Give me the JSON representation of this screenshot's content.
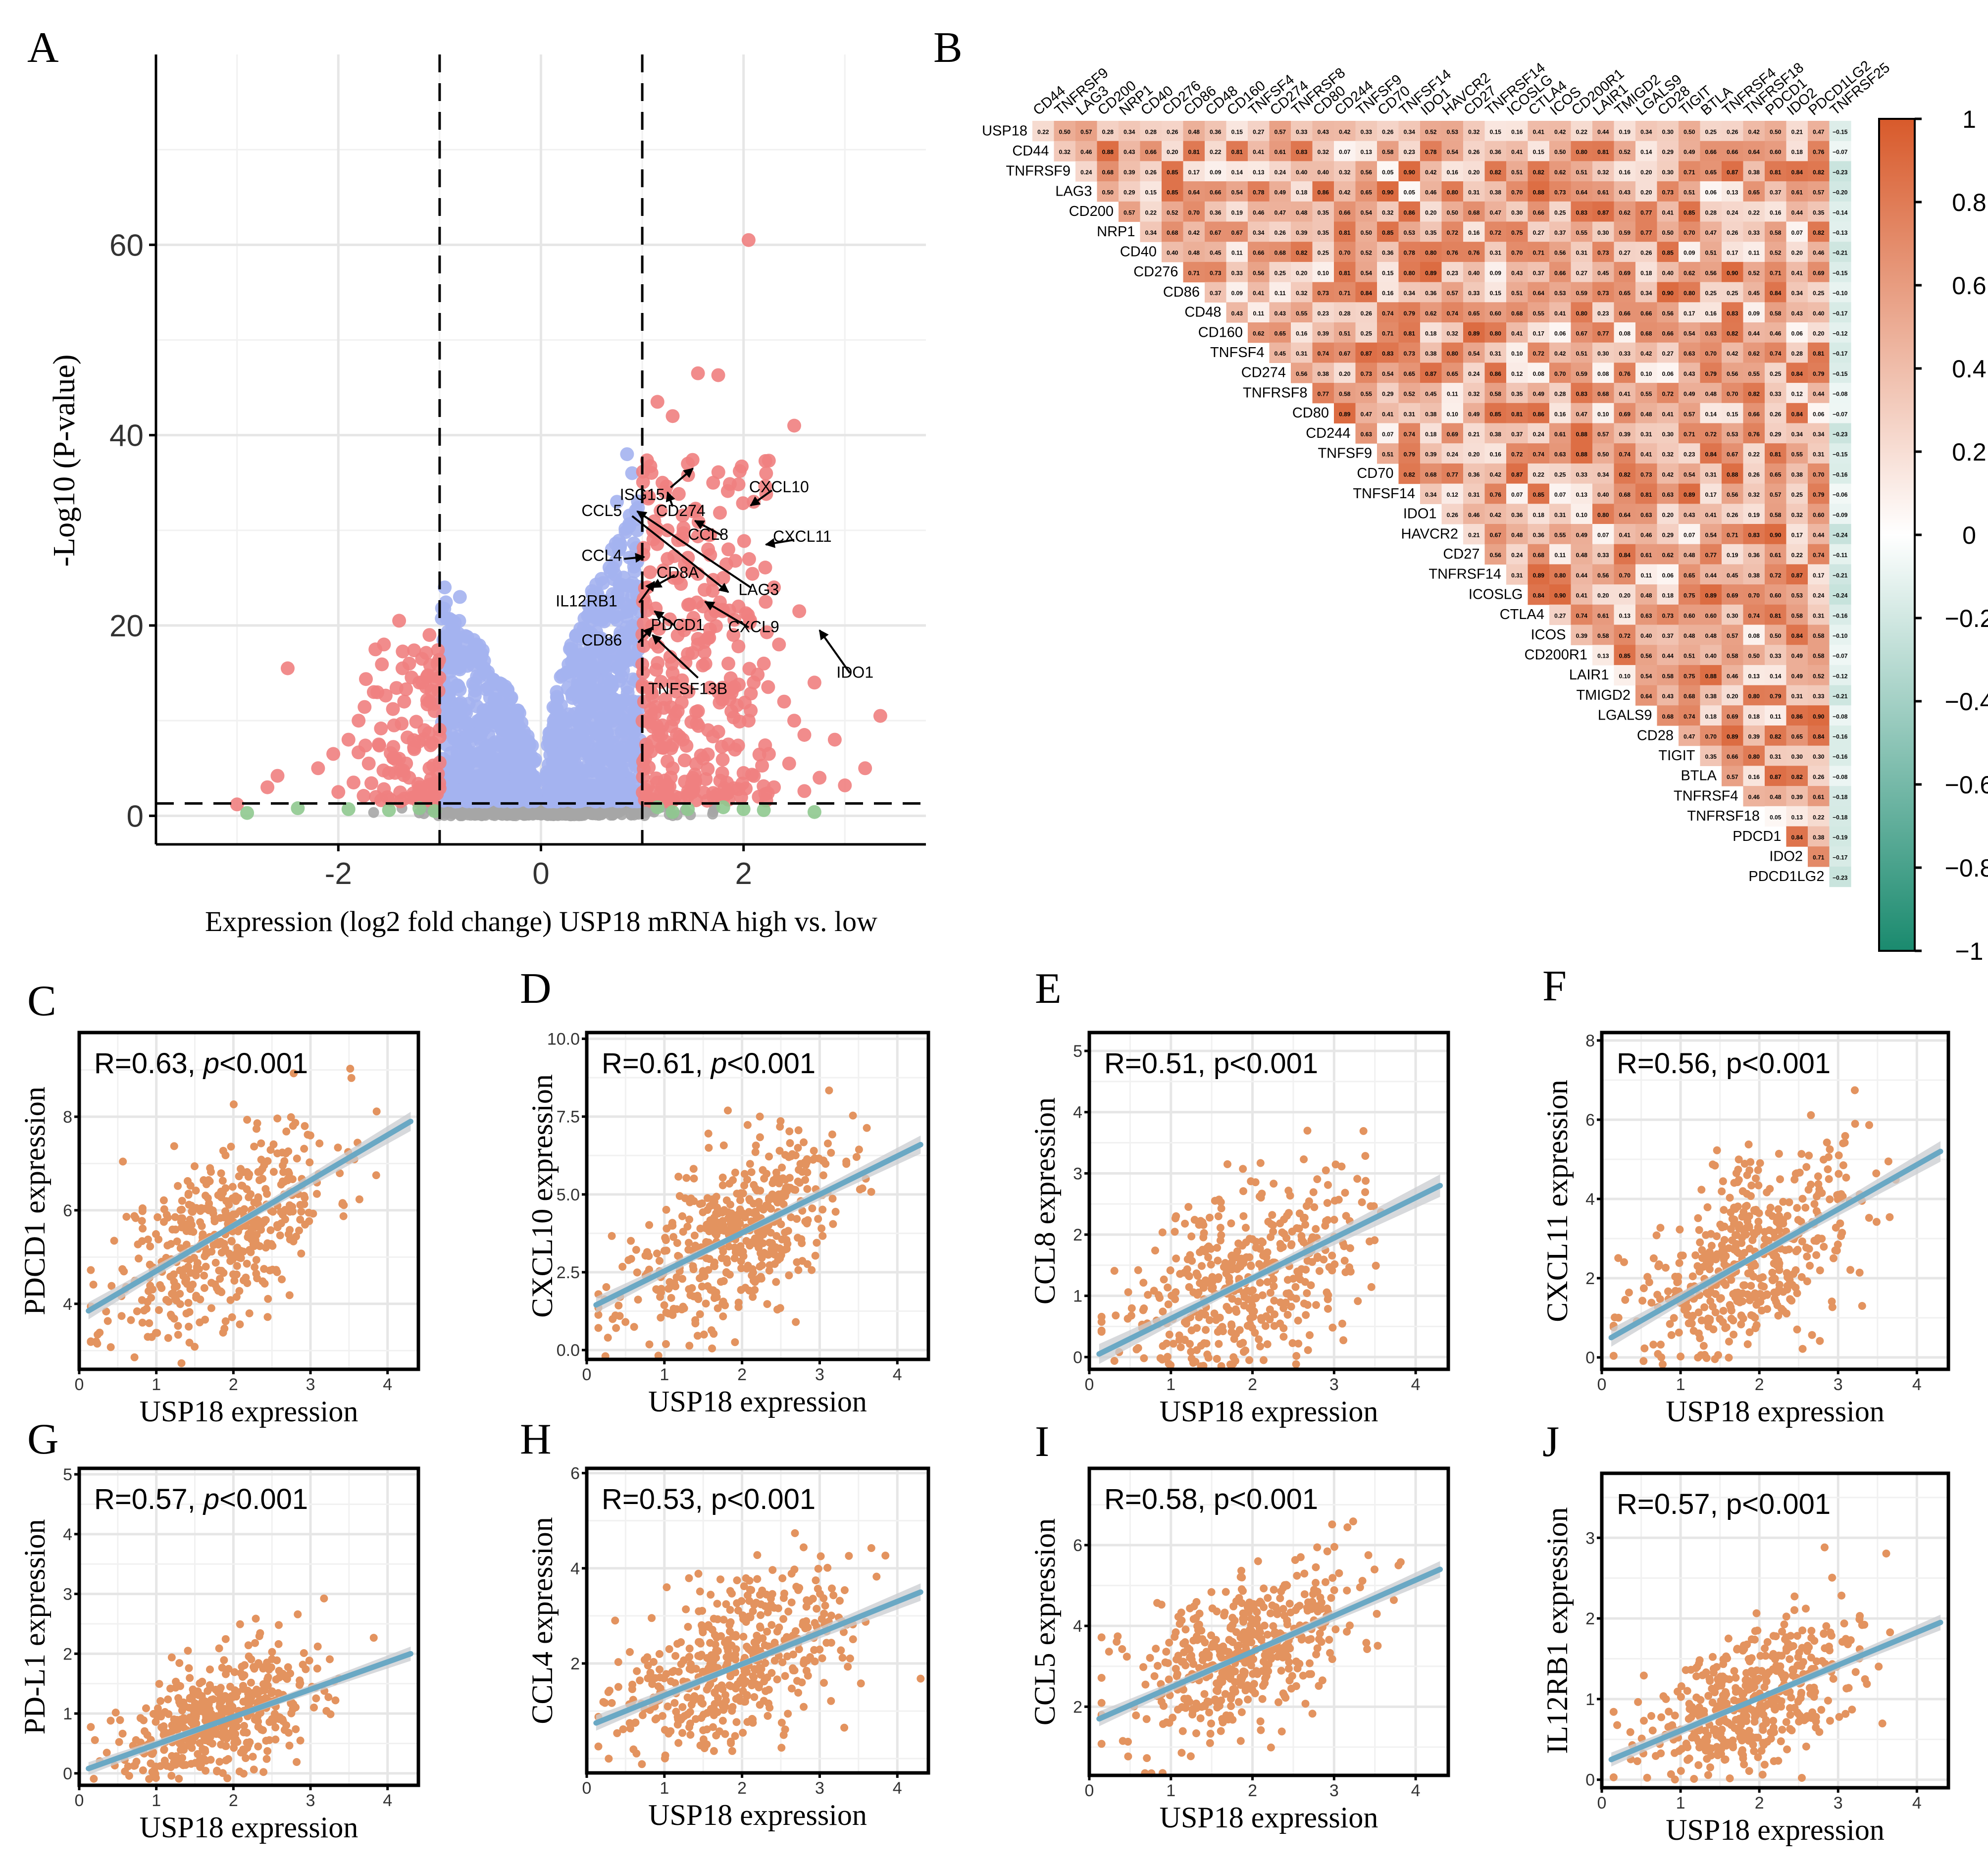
{
  "figure": {
    "panel_letters": [
      "A",
      "B",
      "C",
      "D",
      "E",
      "F",
      "G",
      "H",
      "I",
      "J"
    ]
  },
  "colors": {
    "volcano_up": "#f08080",
    "volcano_down": "#a4b3ef",
    "volcano_ns": "#a6a6a6",
    "volcano_fc_only": "#8fc98f",
    "scatter_point": "#e3935f",
    "fit_line": "#6aa8c4",
    "ci_band": "#c9ccd0",
    "heat_pos": "#d85a2b",
    "heat_neg": "#1a8a6e",
    "heat_mid": "#ffffff"
  },
  "chart_data": [
    {
      "id": "A",
      "type": "scatter",
      "subtype": "volcano",
      "xlabel": "Expression (log2 fold change) USP18 mRNA high vs. low",
      "ylabel": "-Log10 (P-value)",
      "xlim": [
        -3.8,
        3.8
      ],
      "ylim": [
        -3,
        80
      ],
      "xticks": [
        -2,
        0,
        2
      ],
      "xtick_labels": [
        "-2",
        "0",
        "2"
      ],
      "yticks": [
        0,
        20,
        40,
        60
      ],
      "ytick_labels": [
        "0",
        "20",
        "40",
        "60"
      ],
      "vlines": [
        -1,
        1
      ],
      "hline": 1.3,
      "series": [
        {
          "name": "Up",
          "points": [
            [
              2.05,
              60.5
            ],
            [
              1.55,
              46.5
            ],
            [
              1.75,
              46.3
            ],
            [
              1.15,
              43.5
            ],
            [
              2.5,
              41
            ],
            [
              1.3,
              42
            ],
            [
              1.45,
              37
            ],
            [
              1.7,
              35
            ],
            [
              2.1,
              33
            ],
            [
              1.25,
              30
            ],
            [
              1.85,
              28
            ],
            [
              1.35,
              25
            ],
            [
              2.3,
              24
            ],
            [
              1.6,
              22
            ],
            [
              2.55,
              21.5
            ],
            [
              1.1,
              20
            ],
            [
              1.9,
              19
            ],
            [
              1.45,
              17
            ],
            [
              2.2,
              16
            ],
            [
              2.7,
              14
            ],
            [
              1.3,
              15
            ],
            [
              1.75,
              13
            ],
            [
              2.4,
              12
            ],
            [
              3.35,
              10.5
            ],
            [
              1.55,
              11
            ],
            [
              2.05,
              10
            ],
            [
              1.2,
              9.5
            ],
            [
              2.6,
              8.5
            ],
            [
              1.4,
              8
            ],
            [
              2.9,
              8
            ],
            [
              1.85,
              7.5
            ],
            [
              1.05,
              7
            ],
            [
              2.25,
              6.5
            ],
            [
              3.2,
              5
            ],
            [
              1.6,
              6
            ],
            [
              2.45,
              5.5
            ],
            [
              1.3,
              5
            ],
            [
              2.0,
              4.5
            ],
            [
              2.75,
              4
            ],
            [
              1.5,
              4
            ],
            [
              1.15,
              3.5
            ],
            [
              2.3,
              3
            ],
            [
              1.95,
              2.8
            ],
            [
              2.6,
              2.6
            ],
            [
              1.7,
              2.4
            ],
            [
              1.25,
              2.2
            ],
            [
              3.0,
              3.2
            ],
            [
              2.15,
              2
            ],
            [
              1.45,
              2.1
            ],
            [
              1.1,
              12.5
            ],
            [
              1.2,
              35
            ],
            [
              1.5,
              32
            ],
            [
              1.65,
              28
            ],
            [
              1.8,
              25
            ],
            [
              1.4,
              20
            ],
            [
              1.55,
              18
            ],
            [
              1.95,
              22
            ],
            [
              2.1,
              14
            ],
            [
              2.35,
              18
            ],
            [
              1.05,
              24
            ],
            [
              1.25,
              27
            ],
            [
              1.35,
              11
            ],
            [
              1.65,
              9
            ],
            [
              2.5,
              10
            ],
            [
              1.85,
              16
            ]
          ]
        },
        {
          "name": "Down",
          "points": [
            [
              -1.4,
              20.5
            ],
            [
              -1.1,
              19
            ],
            [
              -1.55,
              18
            ],
            [
              -1.3,
              16
            ],
            [
              -2.5,
              15.5
            ],
            [
              -1.2,
              14
            ],
            [
              -1.65,
              13
            ],
            [
              -1.35,
              12
            ],
            [
              -1.05,
              11
            ],
            [
              -1.8,
              10
            ],
            [
              -1.45,
              9.5
            ],
            [
              -1.15,
              9
            ],
            [
              -1.9,
              8
            ],
            [
              -1.6,
              7.5
            ],
            [
              -1.25,
              7
            ],
            [
              -2.05,
              6.5
            ],
            [
              -1.4,
              6
            ],
            [
              -1.7,
              5.5
            ],
            [
              -1.1,
              5
            ],
            [
              -2.2,
              5
            ],
            [
              -1.5,
              4.5
            ],
            [
              -2.6,
              4.2
            ],
            [
              -1.3,
              4
            ],
            [
              -1.85,
              3.5
            ],
            [
              -2.7,
              3
            ],
            [
              -1.2,
              3
            ],
            [
              -1.55,
              2.8
            ],
            [
              -2.0,
              2.5
            ],
            [
              -1.05,
              2.3
            ],
            [
              -1.75,
              2.1
            ],
            [
              -3.0,
              1.2
            ],
            [
              -1.35,
              1.8
            ]
          ]
        },
        {
          "name": "NS_FC",
          "points": [
            [
              -1.2,
              0.8
            ],
            [
              -1.5,
              0.6
            ],
            [
              -1.9,
              0.7
            ],
            [
              -2.4,
              0.8
            ],
            [
              -2.9,
              0.3
            ],
            [
              -1.05,
              0.5
            ],
            [
              1.15,
              0.9
            ],
            [
              1.45,
              0.7
            ],
            [
              1.8,
              0.9
            ],
            [
              2.2,
              0.6
            ],
            [
              2.7,
              0.4
            ],
            [
              1.3,
              0.4
            ],
            [
              2.0,
              0.7
            ]
          ]
        }
      ],
      "annotations": [
        {
          "text": "ISG15",
          "x": 1.0,
          "y": 33.2
        },
        {
          "text": "CD274",
          "x": 1.38,
          "y": 31.5
        },
        {
          "text": "CXCL10",
          "x": 2.35,
          "y": 34.0
        },
        {
          "text": "CCL5",
          "x": 0.6,
          "y": 31.5
        },
        {
          "text": "CCL8",
          "x": 1.65,
          "y": 29.0
        },
        {
          "text": "CXCL11",
          "x": 2.58,
          "y": 28.8
        },
        {
          "text": "CCL4",
          "x": 0.6,
          "y": 26.8
        },
        {
          "text": "CD8A",
          "x": 1.35,
          "y": 25.0
        },
        {
          "text": "LAG3",
          "x": 2.15,
          "y": 23.2
        },
        {
          "text": "IL12RB1",
          "x": 0.45,
          "y": 22.0
        },
        {
          "text": "CXCL9",
          "x": 2.1,
          "y": 19.3
        },
        {
          "text": "PDCD1",
          "x": 1.35,
          "y": 19.5
        },
        {
          "text": "CD86",
          "x": 0.6,
          "y": 17.9
        },
        {
          "text": "IDO1",
          "x": 3.1,
          "y": 14.5
        },
        {
          "text": "TNFSF13B",
          "x": 1.45,
          "y": 12.8
        }
      ]
    },
    {
      "id": "B",
      "type": "heatmap",
      "subtype": "correlation_upper_triangle",
      "genes": [
        "USP18",
        "CD44",
        "TNFRSF9",
        "LAG3",
        "CD200",
        "NRP1",
        "CD40",
        "CD276",
        "CD86",
        "CD48",
        "CD160",
        "TNFSF4",
        "CD274",
        "TNFRSF8",
        "CD80",
        "CD244",
        "TNFSF9",
        "CD70",
        "TNFSF14",
        "IDO1",
        "HAVCR2",
        "CD27",
        "TNFRSF14",
        "ICOSLG",
        "CTLA4",
        "ICOS",
        "CD200R1",
        "LAIR1",
        "TMIGD2",
        "LGALS9",
        "CD28",
        "TIGIT",
        "BTLA",
        "TNFRSF4",
        "TNFRSF18",
        "PDCD1",
        "IDO2",
        "PDCD1LG2",
        "TNFRSF25"
      ],
      "colorbar_ticks": [
        "1",
        "0.8",
        "0.6",
        "0.4",
        "0.2",
        "0",
        "−0.2",
        "−0.4",
        "−0.6",
        "−0.8",
        "−1"
      ],
      "vmin": -1,
      "vmax": 1,
      "values_first_row_sample": [
        0.22,
        0.5,
        0.57,
        0.28,
        0.34,
        0.28,
        0.26,
        0.48,
        0.36,
        0.15,
        0.27,
        0.57,
        0.33,
        0.43,
        0.42,
        0.33,
        0.26,
        0.34,
        0.52,
        0.53,
        0.32,
        0.15,
        0.16,
        0.41,
        0.42,
        0.22,
        0.44,
        0.19,
        0.34,
        0.3,
        0.5,
        0.25,
        0.26,
        0.42,
        0.5,
        0.21,
        0.47,
        -0.15
      ]
    },
    {
      "id": "C",
      "type": "scatter",
      "xlabel": "USP18 expression",
      "ylabel": "PDCD1 expression",
      "stat": "R=0.63, ",
      "p": "p",
      "p_rest": "<0.001",
      "xlim": [
        0,
        4.4
      ],
      "ylim": [
        2.6,
        9.8
      ],
      "xticks": [
        "0",
        "1",
        "2",
        "3",
        "4"
      ],
      "yticks": [
        "4",
        "6",
        "8"
      ],
      "yvals": [
        4,
        6,
        8
      ],
      "fit": [
        [
          0.12,
          3.85
        ],
        [
          4.3,
          7.9
        ]
      ],
      "seed": 11,
      "n": 480,
      "yspread": 0.95,
      "serif_label": true,
      "ylabel_serif": true
    },
    {
      "id": "D",
      "type": "scatter",
      "xlabel": "USP18 expression",
      "ylabel": "CXCL10 expression",
      "stat": "R=0.61, ",
      "p": "p",
      "p_rest": "<0.001",
      "xlim": [
        0,
        4.4
      ],
      "ylim": [
        -0.3,
        10.2
      ],
      "xticks": [
        "0",
        "1",
        "2",
        "3",
        "4"
      ],
      "yticks": [
        "0.0",
        "2.5",
        "5.0",
        "7.5",
        "10.0"
      ],
      "yvals": [
        0,
        2.5,
        5,
        7.5,
        10
      ],
      "fit": [
        [
          0.12,
          1.45
        ],
        [
          4.3,
          6.6
        ]
      ],
      "seed": 23,
      "n": 480,
      "yspread": 1.35,
      "serif_label": true,
      "ylabel_serif": true
    },
    {
      "id": "E",
      "type": "scatter",
      "xlabel": "USP18 expression",
      "ylabel": "CCL8 expression",
      "stat": "R=0.51, p<0.001",
      "p": "",
      "p_rest": "",
      "xlim": [
        0,
        4.4
      ],
      "ylim": [
        -0.2,
        5.3
      ],
      "xticks": [
        "0",
        "1",
        "2",
        "3",
        "4"
      ],
      "yticks": [
        "0",
        "1",
        "2",
        "3",
        "4",
        "5"
      ],
      "yvals": [
        0,
        1,
        2,
        3,
        4,
        5
      ],
      "fit": [
        [
          0.12,
          0.05
        ],
        [
          4.3,
          2.8
        ]
      ],
      "seed": 37,
      "n": 480,
      "yspread": 0.85,
      "serif_label": false,
      "ylabel_serif": true
    },
    {
      "id": "F",
      "type": "scatter",
      "xlabel": "USP18 expression",
      "ylabel": "CXCL11 expression",
      "stat": "R=0.56, p<0.001",
      "p": "",
      "p_rest": "",
      "xlim": [
        0,
        4.4
      ],
      "ylim": [
        -0.3,
        8.2
      ],
      "xticks": [
        "0",
        "1",
        "2",
        "3",
        "4"
      ],
      "yticks": [
        "0",
        "2",
        "4",
        "6",
        "8"
      ],
      "yvals": [
        0,
        2,
        4,
        6,
        8
      ],
      "fit": [
        [
          0.12,
          0.5
        ],
        [
          4.3,
          5.2
        ]
      ],
      "seed": 41,
      "n": 480,
      "yspread": 1.2,
      "serif_label": false,
      "ylabel_serif": true
    },
    {
      "id": "G",
      "type": "scatter",
      "xlabel": "USP18 expression",
      "ylabel": "PD-L1 expression",
      "stat": "R=0.57, ",
      "p": "p",
      "p_rest": "<0.001",
      "xlim": [
        0,
        4.4
      ],
      "ylim": [
        -0.2,
        5.1
      ],
      "xticks": [
        "0",
        "1",
        "2",
        "3",
        "4"
      ],
      "yticks": [
        "0",
        "1",
        "2",
        "3",
        "4",
        "5"
      ],
      "yvals": [
        0,
        1,
        2,
        3,
        4,
        5
      ],
      "fit": [
        [
          0.12,
          0.08
        ],
        [
          4.3,
          2.0
        ]
      ],
      "seed": 53,
      "n": 480,
      "yspread": 0.55,
      "serif_label": true,
      "ylabel_serif": true
    },
    {
      "id": "H",
      "type": "scatter",
      "xlabel": "USP18 expression",
      "ylabel": "CCL4 expression",
      "stat": "R=0.53, p<0.001",
      "p": "",
      "p_rest": "",
      "xlim": [
        0,
        4.4
      ],
      "ylim": [
        -0.3,
        6.1
      ],
      "xticks": [
        "0",
        "1",
        "2",
        "3",
        "4"
      ],
      "yticks": [
        "2",
        "4",
        "6"
      ],
      "yvals": [
        2,
        4,
        6
      ],
      "fit": [
        [
          0.12,
          0.75
        ],
        [
          4.3,
          3.5
        ]
      ],
      "seed": 67,
      "n": 480,
      "yspread": 0.85,
      "serif_label": false,
      "ylabel_serif": true
    },
    {
      "id": "I",
      "type": "scatter",
      "xlabel": "USP18 expression",
      "ylabel": "CCL5 expression",
      "stat": "R=0.58, p<0.001",
      "p": "",
      "p_rest": "",
      "xlim": [
        0,
        4.4
      ],
      "ylim": [
        0.3,
        7.9
      ],
      "xticks": [
        "0",
        "1",
        "2",
        "3",
        "4"
      ],
      "yticks": [
        "2",
        "4",
        "6"
      ],
      "yvals": [
        2,
        4,
        6
      ],
      "fit": [
        [
          0.12,
          1.7
        ],
        [
          4.3,
          5.4
        ]
      ],
      "seed": 71,
      "n": 480,
      "yspread": 0.95,
      "serif_label": false,
      "ylabel_serif": true
    },
    {
      "id": "J",
      "type": "scatter",
      "xlabel": "USP18 expression",
      "ylabel": "IL12RB1 expression",
      "stat": "R=0.57, p<0.001",
      "p": "",
      "p_rest": "",
      "xlim": [
        0,
        4.4
      ],
      "ylim": [
        -0.1,
        3.8
      ],
      "xticks": [
        "0",
        "1",
        "2",
        "3",
        "4"
      ],
      "yticks": [
        "0",
        "1",
        "2",
        "3"
      ],
      "yvals": [
        0,
        1,
        2,
        3
      ],
      "fit": [
        [
          0.12,
          0.25
        ],
        [
          4.3,
          1.95
        ]
      ],
      "seed": 83,
      "n": 480,
      "yspread": 0.45,
      "serif_label": false,
      "ylabel_serif": true
    }
  ]
}
